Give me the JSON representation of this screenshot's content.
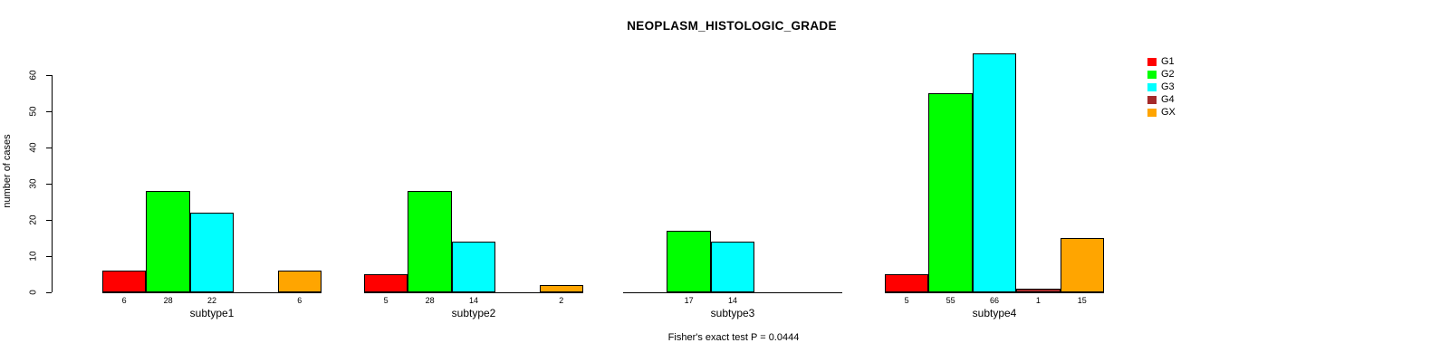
{
  "title": "NEOPLASM_HISTOLOGIC_GRADE",
  "chart_data": {
    "type": "bar",
    "title": "NEOPLASM_HISTOLOGIC_GRADE",
    "xlabel": "",
    "ylabel": "number of cases",
    "ylim": [
      0,
      60
    ],
    "yticks": [
      0,
      10,
      20,
      30,
      40,
      50,
      60
    ],
    "grid": false,
    "legend_position": "right-outside",
    "annotation": "Fisher's exact test P = 0.0444",
    "categories": [
      "subtype1",
      "subtype2",
      "subtype3",
      "subtype4"
    ],
    "series": [
      {
        "name": "G1",
        "color": "#ff0000",
        "values": [
          6,
          5,
          null,
          5
        ]
      },
      {
        "name": "G2",
        "color": "#00ff00",
        "values": [
          28,
          28,
          17,
          55
        ]
      },
      {
        "name": "G3",
        "color": "#00ffff",
        "values": [
          22,
          14,
          14,
          66
        ]
      },
      {
        "name": "G4",
        "color": "#a52a2a",
        "values": [
          null,
          null,
          null,
          1
        ]
      },
      {
        "name": "GX",
        "color": "#ffa500",
        "values": [
          6,
          2,
          null,
          15
        ]
      }
    ],
    "bar_value_labels_shown": true
  },
  "legend": {
    "items": [
      {
        "label": "G1",
        "color": "#ff0000"
      },
      {
        "label": "G2",
        "color": "#00ff00"
      },
      {
        "label": "G3",
        "color": "#00ffff"
      },
      {
        "label": "G4",
        "color": "#a52a2a"
      },
      {
        "label": "GX",
        "color": "#ffa500"
      }
    ]
  }
}
